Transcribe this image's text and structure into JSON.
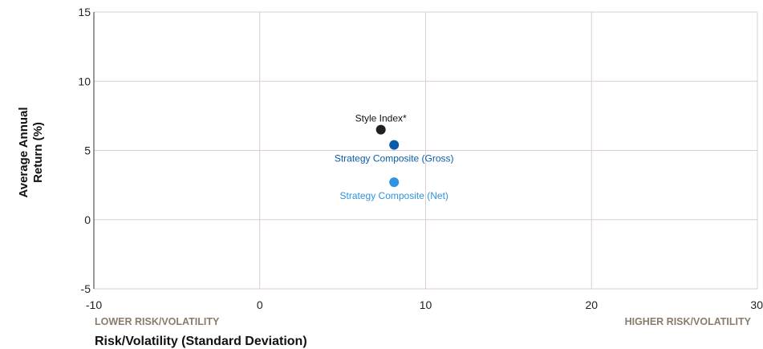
{
  "chart_data": {
    "type": "scatter",
    "title": "",
    "xlabel": "Risk/Volatility (Standard Deviation)",
    "ylabel": [
      "Average Annual",
      "Return (%)"
    ],
    "xlim": [
      -10,
      30
    ],
    "ylim": [
      -5,
      15
    ],
    "x_ticks": [
      -10,
      0,
      10,
      20,
      30
    ],
    "y_ticks": [
      -5,
      0,
      5,
      10,
      15
    ],
    "grid": true,
    "axis_hints": {
      "left": "LOWER RISK/VOLATILITY",
      "right": "HIGHER RISK/VOLATILITY"
    },
    "points": [
      {
        "label": "Style Index*",
        "x": 7.3,
        "y": 6.5,
        "color": "#231f20"
      },
      {
        "label": "Strategy Composite (Gross)",
        "x": 8.1,
        "y": 5.4,
        "color": "#0a5ca8"
      },
      {
        "label": "Strategy Composite (Net)",
        "x": 8.1,
        "y": 2.7,
        "color": "#2e93e0"
      }
    ]
  },
  "colors": {
    "grid": "#dccdd2",
    "axis_hint": "#8a7c6a"
  }
}
